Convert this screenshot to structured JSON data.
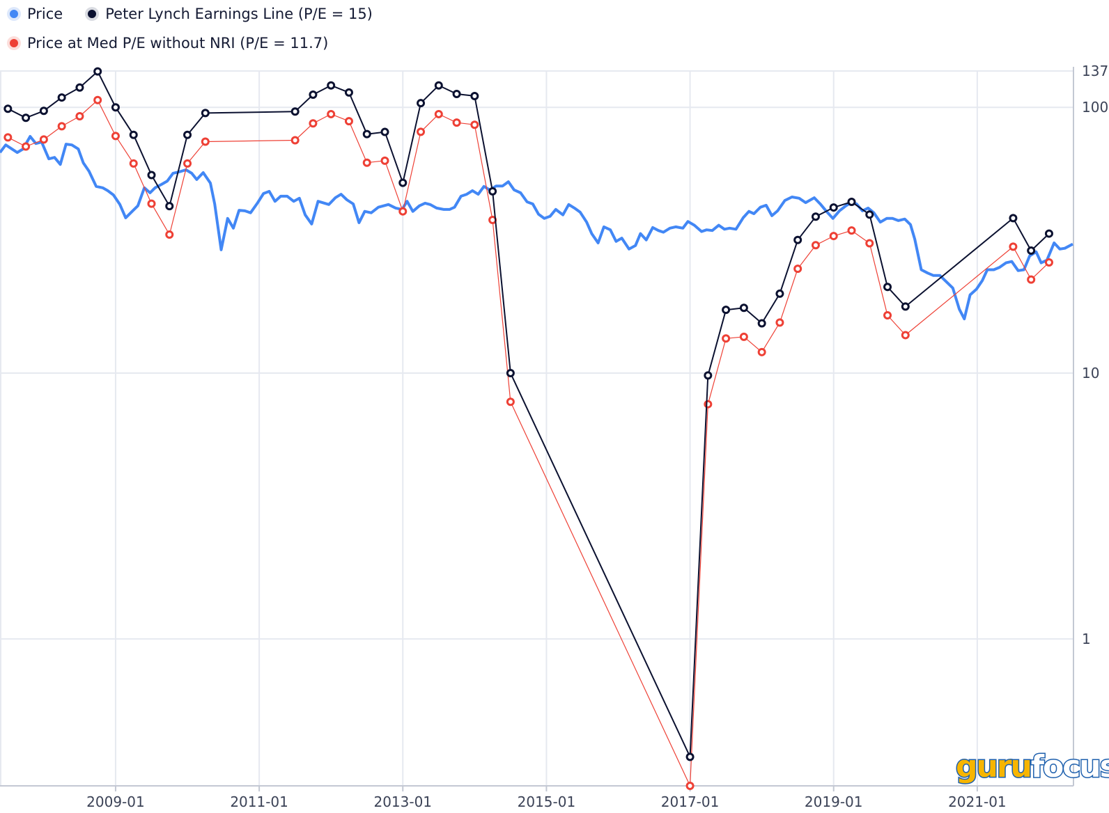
{
  "legend": [
    {
      "label": "Price",
      "color": "#4287f5"
    },
    {
      "label": "Peter Lynch Earnings Line (P/E = 15)",
      "color": "#0b1130"
    },
    {
      "label": "Price at Med P/E without NRI (P/E = 11.7)",
      "color": "#ee4035"
    }
  ],
  "watermark": {
    "part1": "guru",
    "part2": "focus"
  },
  "chart_data": {
    "type": "line",
    "title": "",
    "xlabel": "",
    "ylabel": "",
    "yscale": "log",
    "xlim": [
      2007.39,
      2022.34
    ],
    "ylim": [
      0.28,
      137
    ],
    "x_ticks": [
      {
        "value": 2009,
        "label": "2009-01"
      },
      {
        "value": 2011,
        "label": "2011-01"
      },
      {
        "value": 2013,
        "label": "2013-01"
      },
      {
        "value": 2015,
        "label": "2015-01"
      },
      {
        "value": 2017,
        "label": "2017-01"
      },
      {
        "value": 2019,
        "label": "2019-01"
      },
      {
        "value": 2021,
        "label": "2021-01"
      }
    ],
    "y_ticks": [
      {
        "value": 137,
        "label": "137"
      },
      {
        "value": 100,
        "label": "100"
      },
      {
        "value": 10,
        "label": "10"
      },
      {
        "value": 1,
        "label": "1"
      }
    ],
    "grid": true,
    "y_axis_position": "right",
    "legend_position": "top-left",
    "series": [
      {
        "name": "Price",
        "color": "#4287f5",
        "markers": false,
        "points": [
          [
            2007.39,
            67.6
          ],
          [
            2007.47,
            72.2
          ],
          [
            2007.63,
            67.6
          ],
          [
            2007.71,
            69.7
          ],
          [
            2007.81,
            77.7
          ],
          [
            2007.89,
            73.1
          ],
          [
            2007.97,
            74.0
          ],
          [
            2008.07,
            64.0
          ],
          [
            2008.15,
            64.8
          ],
          [
            2008.23,
            61.0
          ],
          [
            2008.31,
            72.7
          ],
          [
            2008.39,
            72.2
          ],
          [
            2008.48,
            69.7
          ],
          [
            2008.55,
            61.8
          ],
          [
            2008.63,
            57.5
          ],
          [
            2008.73,
            50.4
          ],
          [
            2008.82,
            49.8
          ],
          [
            2008.89,
            48.6
          ],
          [
            2008.97,
            46.8
          ],
          [
            2009.06,
            43.1
          ],
          [
            2009.14,
            38.4
          ],
          [
            2009.23,
            40.6
          ],
          [
            2009.31,
            42.6
          ],
          [
            2009.4,
            49.8
          ],
          [
            2009.48,
            47.7
          ],
          [
            2009.55,
            49.8
          ],
          [
            2009.64,
            51.3
          ],
          [
            2009.72,
            52.8
          ],
          [
            2009.8,
            56.5
          ],
          [
            2009.88,
            57.1
          ],
          [
            2009.98,
            58.2
          ],
          [
            2010.06,
            56.5
          ],
          [
            2010.13,
            53.5
          ],
          [
            2010.22,
            56.8
          ],
          [
            2010.32,
            51.9
          ],
          [
            2010.38,
            43.3
          ],
          [
            2010.47,
            29.1
          ],
          [
            2010.56,
            38.2
          ],
          [
            2010.64,
            35.1
          ],
          [
            2010.72,
            41.0
          ],
          [
            2010.8,
            40.8
          ],
          [
            2010.88,
            40.1
          ],
          [
            2010.98,
            43.8
          ],
          [
            2011.06,
            47.4
          ],
          [
            2011.14,
            48.3
          ],
          [
            2011.22,
            44.3
          ],
          [
            2011.3,
            46.3
          ],
          [
            2011.39,
            46.3
          ],
          [
            2011.48,
            44.3
          ],
          [
            2011.56,
            45.5
          ],
          [
            2011.64,
            39.4
          ],
          [
            2011.73,
            36.4
          ],
          [
            2011.82,
            44.3
          ],
          [
            2011.97,
            43.1
          ],
          [
            2012.06,
            45.7
          ],
          [
            2012.14,
            47.1
          ],
          [
            2012.22,
            44.9
          ],
          [
            2012.31,
            43.3
          ],
          [
            2012.39,
            36.8
          ],
          [
            2012.47,
            40.6
          ],
          [
            2012.56,
            40.1
          ],
          [
            2012.66,
            42.1
          ],
          [
            2012.8,
            43.1
          ],
          [
            2012.9,
            41.8
          ],
          [
            2012.99,
            41.3
          ],
          [
            2013.06,
            44.3
          ],
          [
            2013.14,
            40.6
          ],
          [
            2013.23,
            42.6
          ],
          [
            2013.31,
            43.6
          ],
          [
            2013.38,
            43.1
          ],
          [
            2013.47,
            41.8
          ],
          [
            2013.57,
            41.3
          ],
          [
            2013.65,
            41.3
          ],
          [
            2013.72,
            42.1
          ],
          [
            2013.81,
            46.3
          ],
          [
            2013.89,
            47.1
          ],
          [
            2013.97,
            48.6
          ],
          [
            2014.05,
            47.1
          ],
          [
            2014.13,
            50.4
          ],
          [
            2014.21,
            48.9
          ],
          [
            2014.3,
            50.6
          ],
          [
            2014.39,
            50.6
          ],
          [
            2014.47,
            52.5
          ],
          [
            2014.55,
            48.9
          ],
          [
            2014.64,
            47.7
          ],
          [
            2014.73,
            44.1
          ],
          [
            2014.81,
            43.3
          ],
          [
            2014.89,
            39.6
          ],
          [
            2014.97,
            38.2
          ],
          [
            2015.05,
            38.9
          ],
          [
            2015.13,
            41.3
          ],
          [
            2015.23,
            39.4
          ],
          [
            2015.31,
            43.1
          ],
          [
            2015.39,
            41.8
          ],
          [
            2015.47,
            40.3
          ],
          [
            2015.56,
            37.0
          ],
          [
            2015.63,
            33.5
          ],
          [
            2015.72,
            30.9
          ],
          [
            2015.8,
            35.5
          ],
          [
            2015.89,
            34.6
          ],
          [
            2015.97,
            31.3
          ],
          [
            2016.05,
            32.2
          ],
          [
            2016.15,
            29.3
          ],
          [
            2016.24,
            30.2
          ],
          [
            2016.31,
            33.5
          ],
          [
            2016.39,
            31.7
          ],
          [
            2016.48,
            35.3
          ],
          [
            2016.56,
            34.4
          ],
          [
            2016.63,
            33.9
          ],
          [
            2016.72,
            35.1
          ],
          [
            2016.8,
            35.5
          ],
          [
            2016.9,
            35.1
          ],
          [
            2016.97,
            37.2
          ],
          [
            2017.06,
            36.0
          ],
          [
            2017.16,
            34.1
          ],
          [
            2017.23,
            34.6
          ],
          [
            2017.31,
            34.4
          ],
          [
            2017.4,
            36.0
          ],
          [
            2017.48,
            34.8
          ],
          [
            2017.55,
            35.1
          ],
          [
            2017.64,
            34.8
          ],
          [
            2017.74,
            38.4
          ],
          [
            2017.82,
            40.6
          ],
          [
            2017.89,
            39.8
          ],
          [
            2017.98,
            42.1
          ],
          [
            2018.06,
            42.8
          ],
          [
            2018.14,
            39.1
          ],
          [
            2018.22,
            40.8
          ],
          [
            2018.32,
            44.6
          ],
          [
            2018.42,
            46.0
          ],
          [
            2018.52,
            45.5
          ],
          [
            2018.61,
            43.8
          ],
          [
            2018.73,
            45.7
          ],
          [
            2018.82,
            43.1
          ],
          [
            2018.9,
            40.6
          ],
          [
            2018.99,
            38.2
          ],
          [
            2019.08,
            40.8
          ],
          [
            2019.16,
            42.4
          ],
          [
            2019.24,
            43.8
          ],
          [
            2019.32,
            43.3
          ],
          [
            2019.4,
            40.8
          ],
          [
            2019.48,
            41.8
          ],
          [
            2019.56,
            40.1
          ],
          [
            2019.65,
            37.0
          ],
          [
            2019.74,
            38.2
          ],
          [
            2019.82,
            38.2
          ],
          [
            2019.9,
            37.5
          ],
          [
            2019.99,
            38.0
          ],
          [
            2020.07,
            36.2
          ],
          [
            2020.13,
            31.9
          ],
          [
            2020.22,
            24.5
          ],
          [
            2020.31,
            23.8
          ],
          [
            2020.39,
            23.3
          ],
          [
            2020.48,
            23.3
          ],
          [
            2020.56,
            22.2
          ],
          [
            2020.66,
            20.9
          ],
          [
            2020.75,
            17.4
          ],
          [
            2020.82,
            16.0
          ],
          [
            2020.9,
            19.7
          ],
          [
            2020.99,
            20.7
          ],
          [
            2021.07,
            22.3
          ],
          [
            2021.14,
            24.5
          ],
          [
            2021.23,
            24.5
          ],
          [
            2021.31,
            25.0
          ],
          [
            2021.4,
            26.0
          ],
          [
            2021.48,
            26.3
          ],
          [
            2021.57,
            24.3
          ],
          [
            2021.65,
            24.5
          ],
          [
            2021.73,
            27.6
          ],
          [
            2021.82,
            28.6
          ],
          [
            2021.89,
            26.0
          ],
          [
            2021.97,
            26.6
          ],
          [
            2022.07,
            30.9
          ],
          [
            2022.15,
            29.3
          ],
          [
            2022.22,
            29.5
          ],
          [
            2022.33,
            30.6
          ]
        ]
      },
      {
        "name": "Peter Lynch Earnings Line (P/E = 15)",
        "color": "#0b1130",
        "markers": true,
        "points": [
          [
            2007.5,
            98.8
          ],
          [
            2007.75,
            91.3
          ],
          [
            2008.0,
            97.0
          ],
          [
            2008.25,
            108.9
          ],
          [
            2008.5,
            118.7
          ],
          [
            2008.75,
            136.5
          ],
          [
            2009.0,
            100.0
          ],
          [
            2009.25,
            78.8
          ],
          [
            2009.5,
            55.6
          ],
          [
            2009.75,
            42.5
          ],
          [
            2010.0,
            78.8
          ],
          [
            2010.25,
            95.2
          ],
          [
            2011.5,
            96.4
          ],
          [
            2011.75,
            111.6
          ],
          [
            2012.0,
            120.9
          ],
          [
            2012.25,
            113.7
          ],
          [
            2012.5,
            79.3
          ],
          [
            2012.75,
            80.8
          ],
          [
            2013.0,
            52.0
          ],
          [
            2013.25,
            103.7
          ],
          [
            2013.5,
            120.9
          ],
          [
            2013.75,
            112.3
          ],
          [
            2014.0,
            110.3
          ],
          [
            2014.25,
            48.3
          ],
          [
            2014.5,
            10.0
          ],
          [
            2017.0,
            0.36
          ],
          [
            2017.25,
            9.8
          ],
          [
            2017.5,
            17.3
          ],
          [
            2017.75,
            17.6
          ],
          [
            2018.0,
            15.4
          ],
          [
            2018.25,
            19.9
          ],
          [
            2018.5,
            31.7
          ],
          [
            2018.75,
            38.8
          ],
          [
            2019.0,
            42.0
          ],
          [
            2019.25,
            44.1
          ],
          [
            2019.5,
            39.5
          ],
          [
            2019.75,
            21.1
          ],
          [
            2020.0,
            17.8
          ],
          [
            2021.5,
            38.3
          ],
          [
            2021.75,
            28.9
          ],
          [
            2022.0,
            33.5
          ]
        ]
      },
      {
        "name": "Price at Med P/E without NRI (P/E = 11.7)",
        "color": "#ee4035",
        "markers": true,
        "points": [
          [
            2007.5,
            77.1
          ],
          [
            2007.75,
            71.2
          ],
          [
            2008.0,
            75.7
          ],
          [
            2008.25,
            84.9
          ],
          [
            2008.5,
            92.6
          ],
          [
            2008.75,
            106.5
          ],
          [
            2009.0,
            78.0
          ],
          [
            2009.25,
            61.5
          ],
          [
            2009.5,
            43.4
          ],
          [
            2009.75,
            33.2
          ],
          [
            2010.0,
            61.5
          ],
          [
            2010.25,
            74.3
          ],
          [
            2011.5,
            75.2
          ],
          [
            2011.75,
            87.0
          ],
          [
            2012.0,
            94.3
          ],
          [
            2012.25,
            88.7
          ],
          [
            2012.5,
            61.9
          ],
          [
            2012.75,
            63.0
          ],
          [
            2013.0,
            40.6
          ],
          [
            2013.25,
            80.9
          ],
          [
            2013.5,
            94.3
          ],
          [
            2013.75,
            87.6
          ],
          [
            2014.0,
            86.0
          ],
          [
            2014.25,
            37.7
          ],
          [
            2014.5,
            7.8
          ],
          [
            2017.0,
            0.28
          ],
          [
            2017.25,
            7.64
          ],
          [
            2017.5,
            13.5
          ],
          [
            2017.75,
            13.7
          ],
          [
            2018.0,
            12.0
          ],
          [
            2018.25,
            15.5
          ],
          [
            2018.5,
            24.7
          ],
          [
            2018.75,
            30.3
          ],
          [
            2019.0,
            32.8
          ],
          [
            2019.25,
            34.4
          ],
          [
            2019.5,
            30.8
          ],
          [
            2019.75,
            16.5
          ],
          [
            2020.0,
            13.9
          ],
          [
            2021.5,
            29.9
          ],
          [
            2021.75,
            22.5
          ],
          [
            2022.0,
            26.1
          ]
        ]
      }
    ]
  }
}
